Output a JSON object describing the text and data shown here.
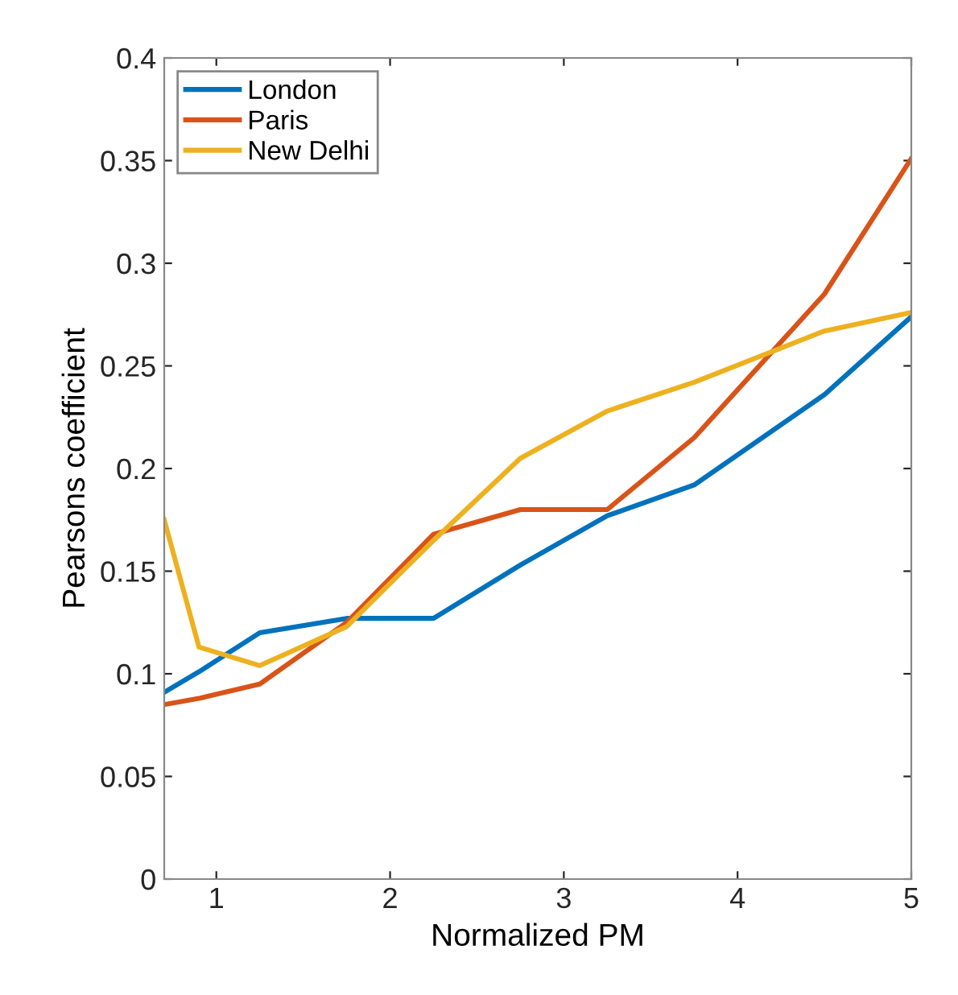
{
  "chart_data": {
    "type": "line",
    "xlabel": "Normalized PM",
    "ylabel": "Pearsons coefficient",
    "x": [
      0.7,
      0.9,
      1.25,
      1.75,
      2.25,
      2.75,
      3.25,
      3.75,
      4.5,
      5
    ],
    "series": [
      {
        "name": "London",
        "color": "#0072bd",
        "values": [
          0.091,
          0.101,
          0.12,
          0.127,
          0.127,
          0.153,
          0.177,
          0.192,
          0.236,
          0.274
        ]
      },
      {
        "name": "Paris",
        "color": "#d95319",
        "values": [
          0.085,
          0.088,
          0.095,
          0.125,
          0.168,
          0.18,
          0.18,
          0.215,
          0.285,
          0.351
        ]
      },
      {
        "name": "New Delhi",
        "color": "#edb120",
        "values": [
          0.175,
          0.113,
          0.104,
          0.123,
          0.165,
          0.205,
          0.228,
          0.242,
          0.267,
          0.276
        ]
      }
    ],
    "xlim": [
      0.7,
      5
    ],
    "xticks": [
      1,
      2,
      3,
      4,
      5
    ],
    "ylim": [
      0,
      0.4
    ],
    "yticks": [
      0,
      0.05,
      0.1,
      0.15,
      0.2,
      0.25,
      0.3,
      0.35,
      0.4
    ],
    "grid": false,
    "legend": "top left",
    "marker": "none",
    "line_style": "solid"
  }
}
